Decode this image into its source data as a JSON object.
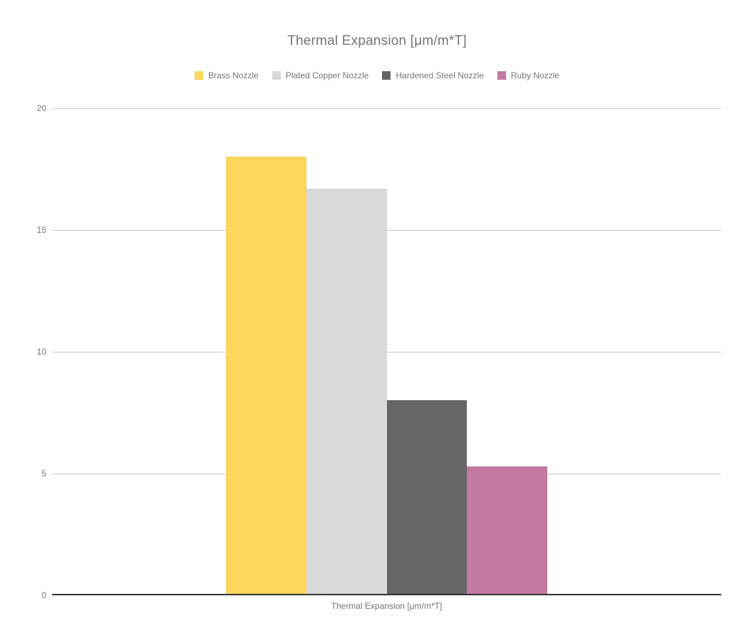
{
  "chart_data": {
    "type": "bar",
    "title": "Thermal Expansion [μm/m*T]",
    "categories": [
      "Thermal Expansion [μm/m*T]"
    ],
    "series": [
      {
        "name": "Brass Nozzle",
        "color": "#FCD65D",
        "values": [
          18
        ]
      },
      {
        "name": "Plated Copper Nozzle",
        "color": "#D9D9D9",
        "values": [
          16.7
        ]
      },
      {
        "name": "Hardened Steel Nozzle",
        "color": "#666666",
        "values": [
          8
        ]
      },
      {
        "name": "Ruby Nozzle",
        "color": "#C27BA0",
        "values": [
          5.3
        ]
      }
    ],
    "xlabel": "Thermal Expansion [μm/m*T]",
    "ylabel": "",
    "ylim": [
      0,
      20
    ],
    "yticks": [
      0,
      5,
      10,
      15,
      20
    ],
    "grid": true,
    "legend_position": "top",
    "colors": {
      "background": "#FFFFFF",
      "grid_line": "#CCCCCC",
      "baseline": "#333333",
      "text": "#757575"
    }
  }
}
